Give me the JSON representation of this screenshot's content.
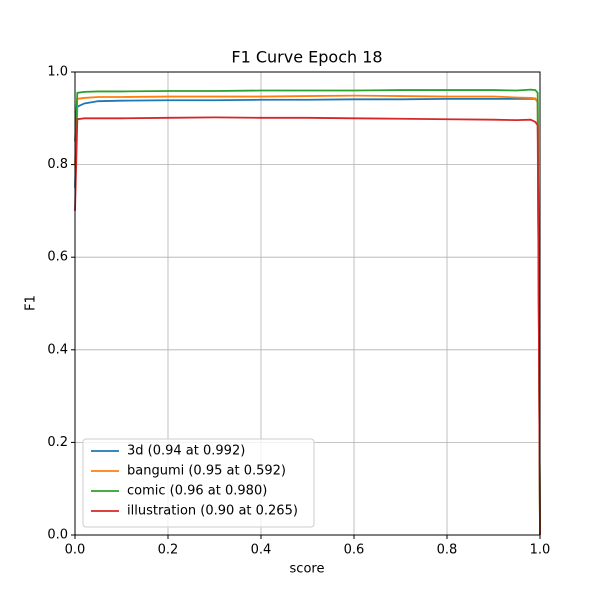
{
  "chart_data": {
    "type": "line",
    "title": "F1 Curve Epoch 18",
    "x_label": "score",
    "y_label": "F1",
    "x": [
      0,
      0.005,
      0.02,
      0.05,
      0.1,
      0.2,
      0.3,
      0.4,
      0.5,
      0.6,
      0.7,
      0.8,
      0.9,
      0.95,
      0.98,
      0.99,
      0.995,
      1.0
    ],
    "series": [
      {
        "name": "3d (0.94 at 0.992)",
        "color": "#1f77b4",
        "values": [
          0.75,
          0.925,
          0.932,
          0.937,
          0.938,
          0.939,
          0.939,
          0.94,
          0.94,
          0.941,
          0.941,
          0.942,
          0.942,
          0.942,
          0.942,
          0.942,
          0.935,
          0
        ]
      },
      {
        "name": "bangumi (0.95 at 0.592)",
        "color": "#ff7f0e",
        "values": [
          0.8,
          0.942,
          0.944,
          0.946,
          0.946,
          0.947,
          0.947,
          0.947,
          0.948,
          0.949,
          0.948,
          0.947,
          0.947,
          0.945,
          0.944,
          0.943,
          0.935,
          0
        ]
      },
      {
        "name": "comic (0.96 at 0.980)",
        "color": "#2ca02c",
        "values": [
          0.85,
          0.955,
          0.957,
          0.958,
          0.958,
          0.959,
          0.959,
          0.96,
          0.96,
          0.96,
          0.961,
          0.961,
          0.961,
          0.96,
          0.962,
          0.961,
          0.955,
          0
        ]
      },
      {
        "name": "illustration (0.90 at 0.265)",
        "color": "#d62728",
        "values": [
          0.7,
          0.898,
          0.9,
          0.9,
          0.9,
          0.901,
          0.902,
          0.901,
          0.901,
          0.9,
          0.899,
          0.898,
          0.897,
          0.896,
          0.897,
          0.892,
          0.885,
          0
        ]
      }
    ],
    "xlim": [
      0,
      1
    ],
    "ylim": [
      0,
      1
    ],
    "xticks": [
      {
        "value": 0,
        "label": "0.0"
      },
      0.2,
      0.4,
      0.6,
      0.8,
      {
        "value": 1,
        "label": "1.0"
      }
    ],
    "yticks": [
      {
        "value": 0,
        "label": "0.0"
      },
      0.2,
      0.4,
      0.6,
      0.8,
      {
        "value": 1,
        "label": "1.0"
      }
    ],
    "grid": true,
    "legend": "lower-left"
  }
}
